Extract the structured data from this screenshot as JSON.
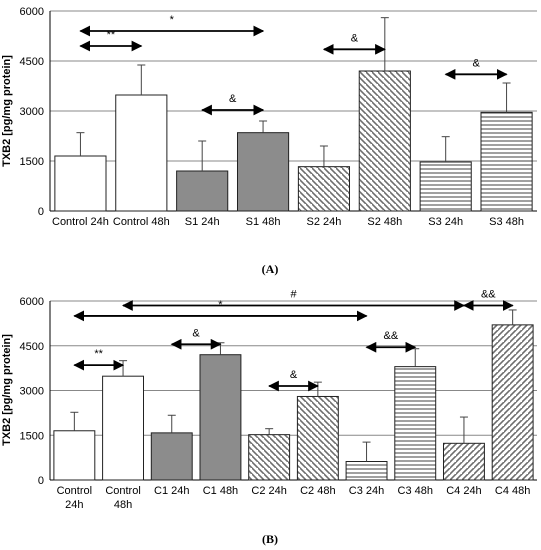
{
  "chart_data": [
    {
      "type": "bar",
      "panel_label": "(A)",
      "ylabel": "TXB2 [pg/mg protein]",
      "ylim": [
        0,
        6000
      ],
      "yticks": [
        "0",
        "1500",
        "3000",
        "4500",
        "6000"
      ],
      "grid": "horizontal",
      "categories": [
        "Control 24h",
        "Control 48h",
        "S1 24h",
        "S1 48h",
        "S2 24h",
        "S2 48h",
        "S3 24h",
        "S3 48h"
      ],
      "values": [
        1650,
        3480,
        1200,
        2350,
        1330,
        4200,
        1470,
        2960
      ],
      "errors": [
        700,
        900,
        900,
        350,
        620,
        1600,
        760,
        880
      ],
      "fills": [
        "white",
        "white",
        "gray",
        "gray",
        "diag-back",
        "diag-back",
        "horiz",
        "horiz"
      ],
      "annotations": [
        {
          "text": "*",
          "from": 0,
          "to": 3,
          "y": 5400
        },
        {
          "text": "**",
          "from": 0,
          "to": 1,
          "y": 4950
        },
        {
          "text": "&",
          "from": 2,
          "to": 3,
          "y": 3030
        },
        {
          "text": "&",
          "from": 4,
          "to": 5,
          "y": 4850
        },
        {
          "text": "&",
          "from": 6,
          "to": 7,
          "y": 4100
        }
      ]
    },
    {
      "type": "bar",
      "panel_label": "(B)",
      "ylabel": "TXB2 [pg/mg protein]",
      "ylim": [
        0,
        6000
      ],
      "yticks": [
        "0",
        "1500",
        "3000",
        "4500",
        "6000"
      ],
      "grid": "horizontal",
      "categories": [
        "Control 24h",
        "Control 48h",
        "C1 24h",
        "C1 48h",
        "C2 24h",
        "C2 48h",
        "C3 24h",
        "C3 48h",
        "C4 24h",
        "C4 48h"
      ],
      "values": [
        1650,
        3480,
        1580,
        4200,
        1520,
        2800,
        620,
        3800,
        1230,
        5200
      ],
      "errors": [
        620,
        520,
        590,
        400,
        200,
        480,
        650,
        600,
        880,
        500
      ],
      "fills": [
        "white",
        "white",
        "gray",
        "gray",
        "diag-back",
        "diag-back",
        "horiz",
        "horiz",
        "diag-fwd",
        "diag-fwd"
      ],
      "annotations": [
        {
          "text": "#",
          "from": 1,
          "to": 8,
          "y": 5850
        },
        {
          "text": "*",
          "from": 0,
          "to": 6,
          "y": 5500
        },
        {
          "text": "&&",
          "from": 8,
          "to": 9,
          "y": 5850
        },
        {
          "text": "**",
          "from": 0,
          "to": 1,
          "y": 3850
        },
        {
          "text": "&",
          "from": 2,
          "to": 3,
          "y": 4550
        },
        {
          "text": "&&",
          "from": 6,
          "to": 7,
          "y": 4450
        },
        {
          "text": "&",
          "from": 4,
          "to": 5,
          "y": 3150
        }
      ]
    }
  ]
}
